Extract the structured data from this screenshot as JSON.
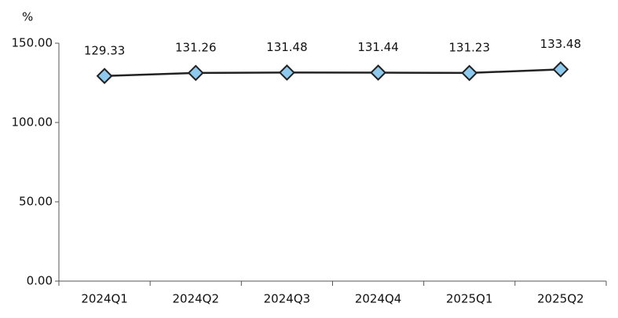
{
  "chart_data": {
    "type": "line",
    "y_label": "%",
    "categories": [
      "2024Q1",
      "2024Q2",
      "2024Q3",
      "2024Q4",
      "2025Q1",
      "2025Q2"
    ],
    "series": [
      {
        "name": "value",
        "color": "#8ec9ee",
        "line_color": "#222222",
        "values": [
          129.33,
          131.26,
          131.48,
          131.44,
          131.23,
          133.48
        ]
      }
    ],
    "ylim": [
      0,
      150
    ],
    "yticks": [
      {
        "value": 0,
        "label": "0.00"
      },
      {
        "value": 50,
        "label": "50.00"
      },
      {
        "value": 100,
        "label": "100.00"
      },
      {
        "value": 150,
        "label": "150.00"
      }
    ],
    "grid": false
  }
}
